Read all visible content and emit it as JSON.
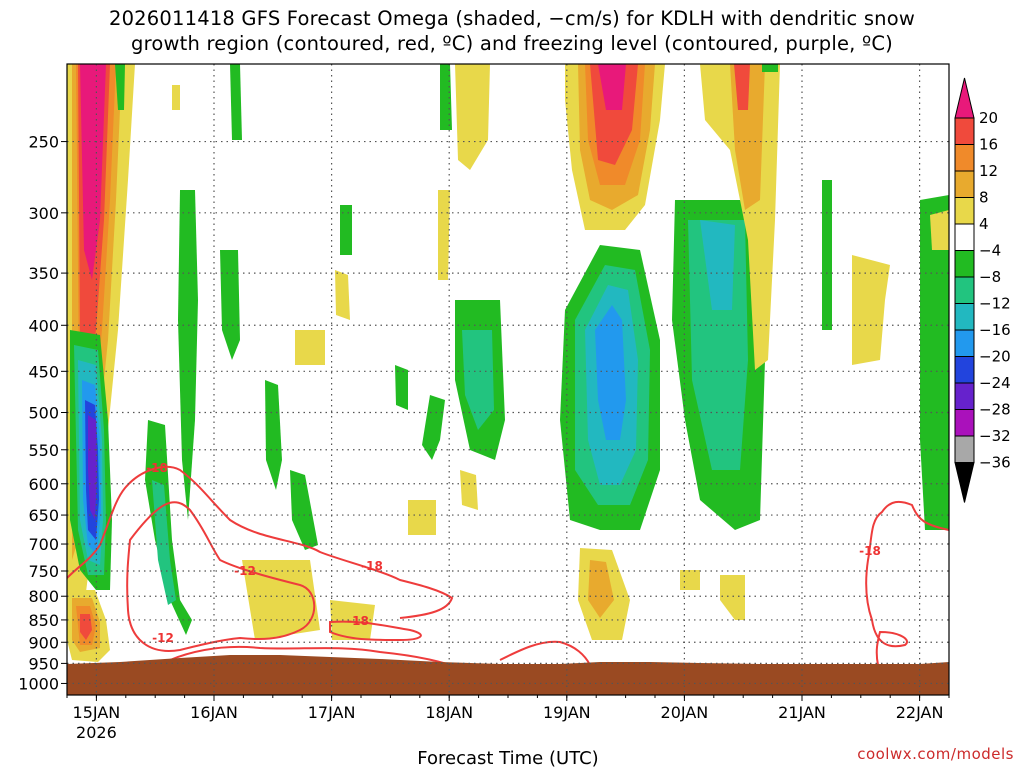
{
  "title": {
    "line1": "2026011418 GFS Forecast Omega (shaded, −cm/s) for KDLH with dendritic snow",
    "line2": "growth region (contoured, red, ºC) and freezing level (contoured, purple, ºC)"
  },
  "watermark": "coolwx.com/models",
  "colors": {
    "terrain": "#9a4a22",
    "dgz_contour": "#ee3c3c",
    "grid": "#555555"
  },
  "chart_data": {
    "type": "heatmap",
    "title": "2026011418 GFS Forecast Omega (shaded, −cm/s) for KDLH with dendritic snow growth region (contoured, red, ºC) and freezing level (contoured, purple, ºC)",
    "xlabel": "Forecast Time (UTC)",
    "ylabel": "",
    "x_ticks": [
      "15JAN",
      "16JAN",
      "17JAN",
      "18JAN",
      "19JAN",
      "20JAN",
      "21JAN",
      "22JAN"
    ],
    "x_tick_sublabel": "2026",
    "y_ticks": [
      250,
      300,
      350,
      400,
      450,
      500,
      550,
      600,
      650,
      700,
      750,
      800,
      850,
      900,
      950,
      1000
    ],
    "y_scale": "log-pressure",
    "y_unit": "hPa",
    "xlim": [
      "2026-01-14 18Z",
      "2026-01-22 06Z"
    ],
    "ylim": [
      1030,
      205
    ],
    "grid": true,
    "colorbar": {
      "levels": [
        20,
        16,
        12,
        8,
        4,
        -4,
        -8,
        -12,
        -16,
        -20,
        -24,
        -28,
        -32,
        -36
      ],
      "colors": [
        "#e8197a",
        "#f04a3c",
        "#f08a2a",
        "#e8aa2e",
        "#e8d84a",
        "#ffffff",
        "#22bb22",
        "#22c47f",
        "#22b8c0",
        "#2299ee",
        "#2244dd",
        "#6622cc",
        "#aa11bb",
        "#a8a8a8",
        "#000000"
      ]
    },
    "series": [
      {
        "name": "Omega (−cm/s)",
        "regions": [
          {
            "x": "15JAN 00Z",
            "p_range": [
              205,
              780
            ],
            "max_value": 24
          },
          {
            "x": "15JAN 00Z",
            "p_range": [
              450,
              780
            ],
            "min_value": -32
          },
          {
            "x": "15JAN 00Z",
            "p_range": [
              820,
              950
            ],
            "max_value": 20
          },
          {
            "x": "19JAN 06Z",
            "p_range": [
              210,
              300
            ],
            "max_value": 20
          },
          {
            "x": "19JAN 06Z",
            "p_range": [
              330,
              650
            ],
            "min_value": -16
          },
          {
            "x": "20JAN 06Z",
            "p_range": [
              300,
              650
            ],
            "min_value": -12
          },
          {
            "x": "20JAN 12Z",
            "p_range": [
              205,
              400
            ],
            "max_value": 16
          }
        ]
      },
      {
        "name": "Dendritic snow growth region (ºC)",
        "contour_labels": [
          -18,
          -12,
          -12,
          -18,
          -18,
          -18
        ]
      }
    ]
  }
}
